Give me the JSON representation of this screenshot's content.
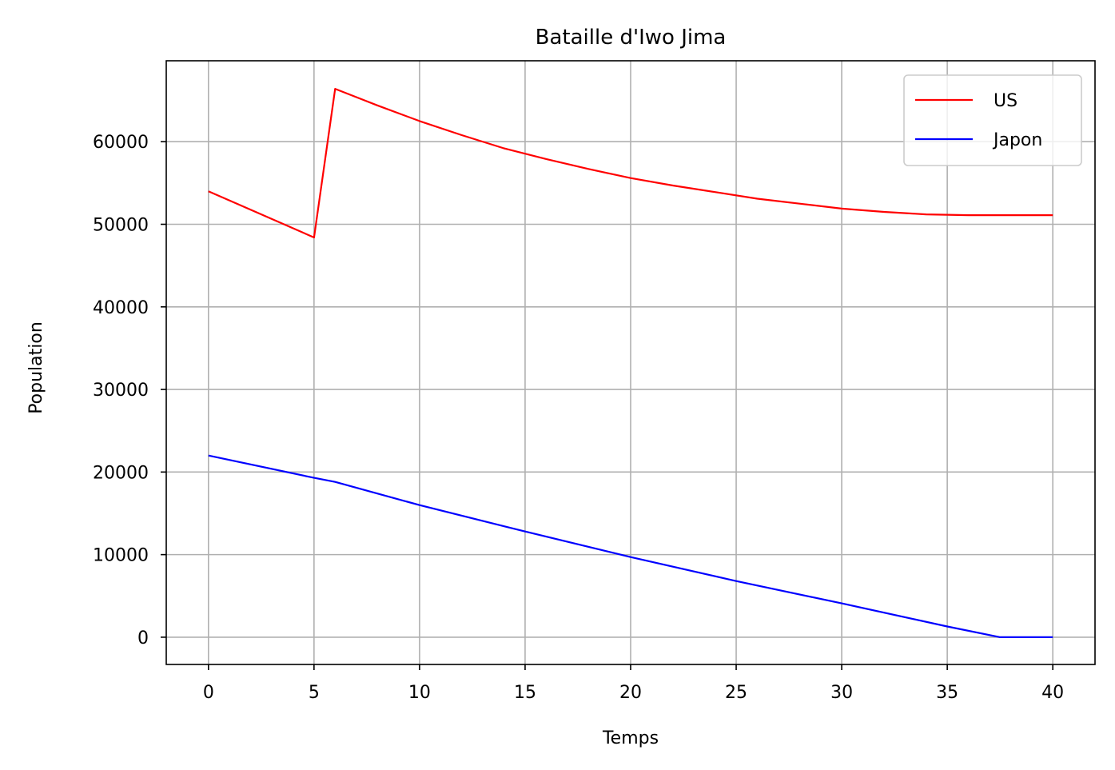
{
  "chart_data": {
    "type": "line",
    "title": "Bataille d'Iwo Jima",
    "xlabel": "Temps",
    "ylabel": "Population",
    "xlim": [
      -2,
      42
    ],
    "ylim": [
      -3300,
      69800
    ],
    "xticks": [
      0,
      5,
      10,
      15,
      20,
      25,
      30,
      35,
      40
    ],
    "yticks": [
      0,
      10000,
      20000,
      30000,
      40000,
      50000,
      60000
    ],
    "xtick_labels": [
      "0",
      "5",
      "10",
      "15",
      "20",
      "25",
      "30",
      "35",
      "40"
    ],
    "ytick_labels": [
      "0",
      "10000",
      "20000",
      "30000",
      "40000",
      "50000",
      "60000"
    ],
    "grid": true,
    "legend_position": "top-right",
    "series": [
      {
        "name": "US",
        "color": "#ff0000",
        "points": [
          [
            0,
            54000
          ],
          [
            5,
            48400
          ],
          [
            6,
            66400
          ],
          [
            8,
            64400
          ],
          [
            10,
            62500
          ],
          [
            12,
            60800
          ],
          [
            14,
            59200
          ],
          [
            16,
            57900
          ],
          [
            18,
            56700
          ],
          [
            20,
            55600
          ],
          [
            22,
            54700
          ],
          [
            24,
            53900
          ],
          [
            26,
            53100
          ],
          [
            28,
            52500
          ],
          [
            30,
            51900
          ],
          [
            32,
            51500
          ],
          [
            34,
            51200
          ],
          [
            36,
            51100
          ],
          [
            37.5,
            51100
          ],
          [
            40,
            51100
          ]
        ]
      },
      {
        "name": "Japon",
        "color": "#0000ff",
        "points": [
          [
            0,
            22000
          ],
          [
            5,
            19300
          ],
          [
            6,
            18800
          ],
          [
            10,
            16000
          ],
          [
            15,
            12800
          ],
          [
            20,
            9700
          ],
          [
            25,
            6800
          ],
          [
            30,
            4100
          ],
          [
            35,
            1300
          ],
          [
            37.5,
            0
          ],
          [
            40,
            0
          ]
        ]
      }
    ]
  }
}
